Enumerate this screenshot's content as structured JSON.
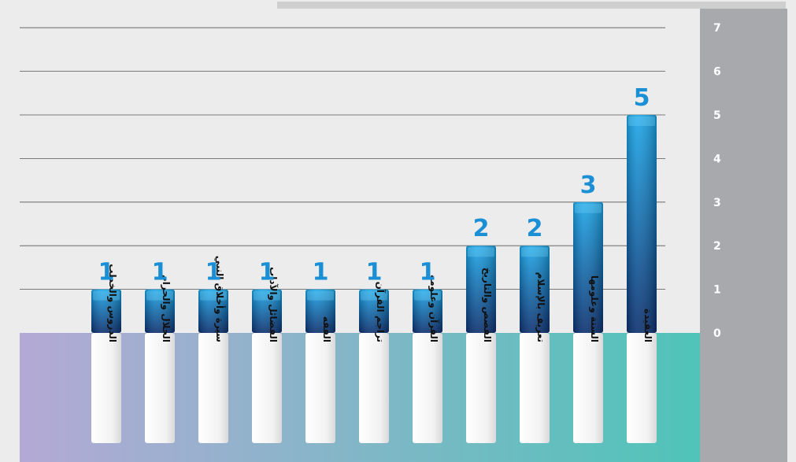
{
  "chart_data": {
    "type": "bar",
    "title": "",
    "xlabel": "",
    "ylabel": "",
    "ylim": [
      0,
      7
    ],
    "yticks": [
      0,
      1,
      2,
      3,
      4,
      5,
      6,
      7
    ],
    "grid": true,
    "orientation": "right-to-left",
    "categories": [
      "العقيدة",
      "السنة وعلومها",
      "تعريف بالإسلام",
      "القصص والتاريخ",
      "القرآن وعلومه",
      "تراجم القرآن",
      "الفقه",
      "الفضائل والآداب",
      "سيرة وأخلاق النبي",
      "الحلال والحرام",
      "الدروس والخطب"
    ],
    "values": [
      5,
      3,
      2,
      2,
      1,
      1,
      1,
      1,
      1,
      1,
      1
    ]
  },
  "colors": {
    "background": "#ececec",
    "axis_panel": "#a7a9ac",
    "gridline": "#555555",
    "value_label": "#1a8fd6",
    "bar_top": "#1ba6e8",
    "bar_bottom": "#0b2f6e",
    "band_left": "#b4a9d6",
    "band_right": "#4fc4b8"
  }
}
